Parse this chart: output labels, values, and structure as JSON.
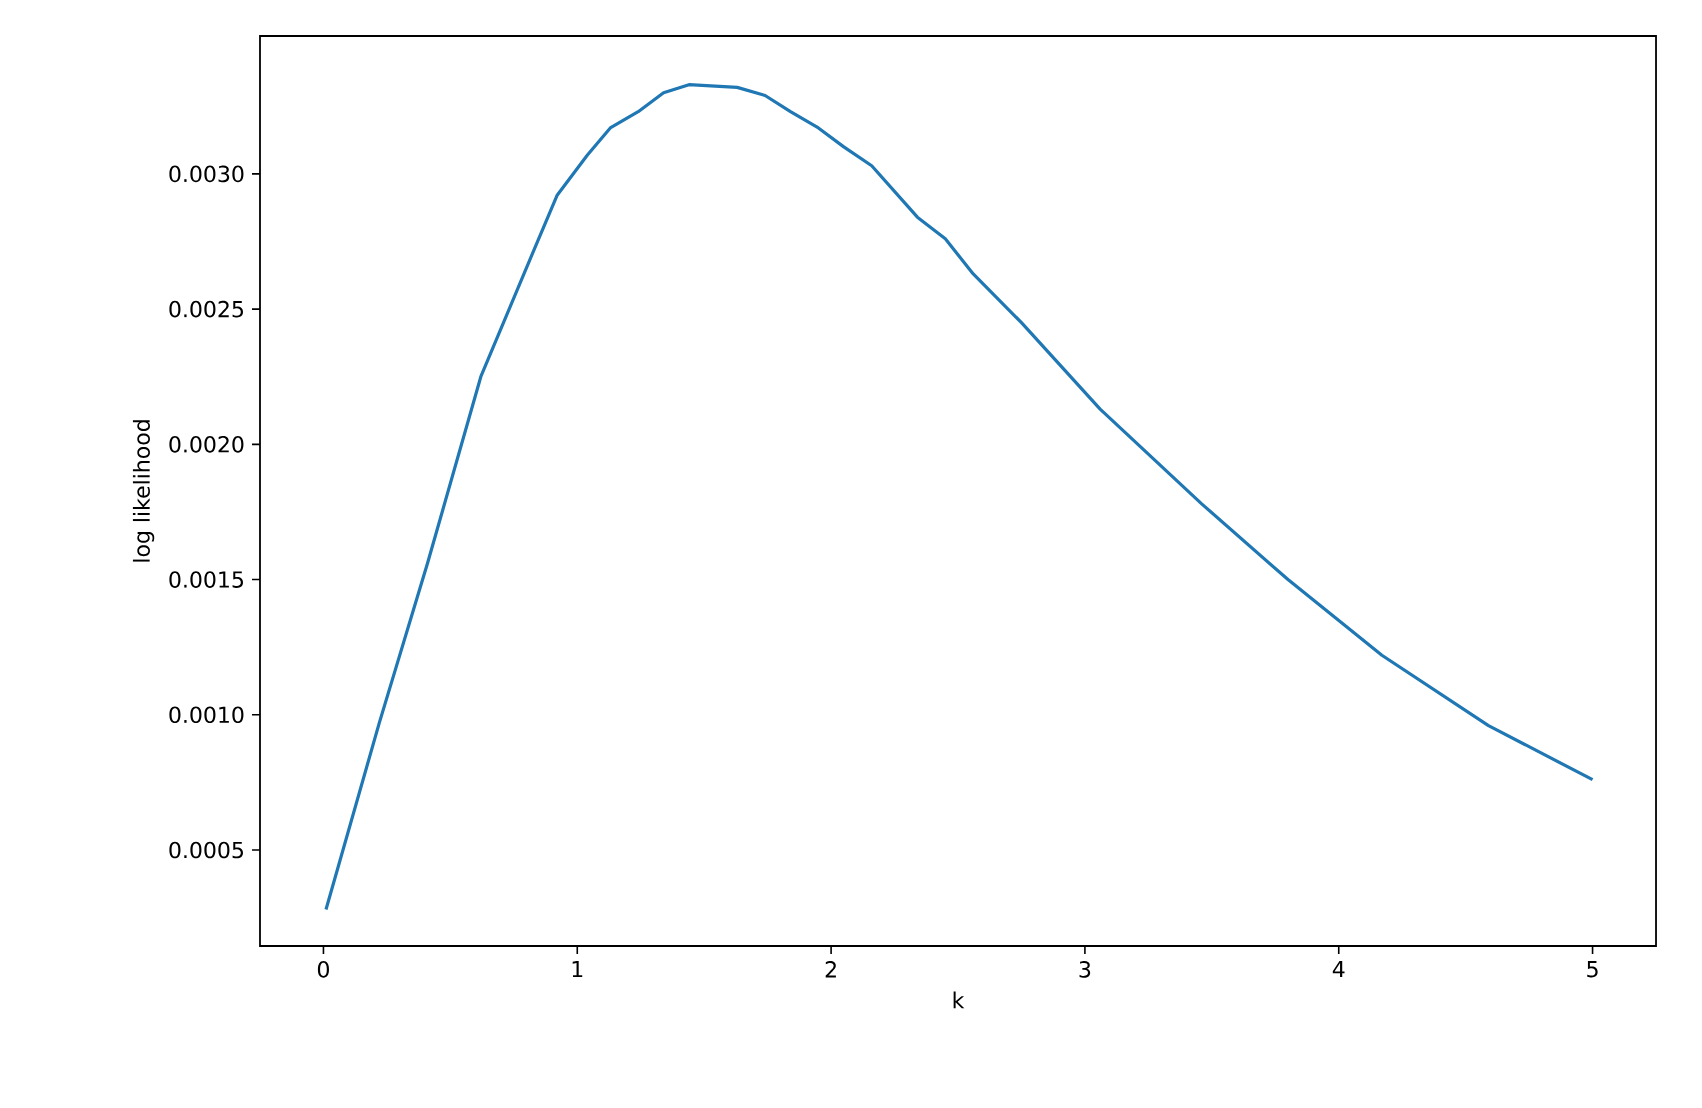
{
  "chart_data": {
    "type": "line",
    "xlabel": "k",
    "ylabel": "log likelihood",
    "x": [
      0.01,
      0.22,
      0.41,
      0.62,
      0.83,
      0.92,
      1.04,
      1.13,
      1.24,
      1.34,
      1.44,
      1.63,
      1.74,
      1.84,
      1.95,
      2.05,
      2.16,
      2.34,
      2.45,
      2.56,
      2.75,
      3.06,
      3.46,
      3.8,
      4.17,
      4.59,
      5.0
    ],
    "series": [
      {
        "color": "#1f77b4",
        "values": [
          0.00028,
          0.00097,
          0.00156,
          0.00225,
          0.00272,
          0.00292,
          0.00307,
          0.00317,
          0.00323,
          0.0033,
          0.00333,
          0.00332,
          0.00329,
          0.00323,
          0.00317,
          0.0031,
          0.00303,
          0.00284,
          0.00276,
          0.00263,
          0.00245,
          0.00213,
          0.00178,
          0.0015,
          0.00122,
          0.00096,
          0.00076
        ]
      }
    ],
    "xlim": [
      -0.25,
      5.25
    ],
    "ylim": [
      0.000145,
      0.00351
    ],
    "xticks": [
      0,
      1,
      2,
      3,
      4,
      5
    ],
    "yticks": [
      {
        "value": 0.0005,
        "label": "0.0005"
      },
      {
        "value": 0.001,
        "label": "0.0010"
      },
      {
        "value": 0.0015,
        "label": "0.0015"
      },
      {
        "value": 0.002,
        "label": "0.0020"
      },
      {
        "value": 0.0025,
        "label": "0.0025"
      },
      {
        "value": 0.003,
        "label": "0.0030"
      }
    ],
    "marker": "none",
    "line_style": "solid"
  }
}
